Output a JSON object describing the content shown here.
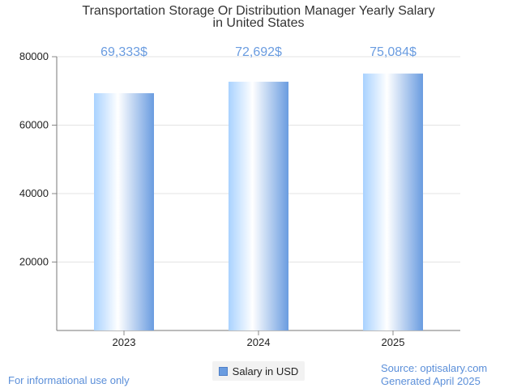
{
  "chart_data": {
    "type": "bar",
    "title_lines": [
      "Transportation Storage Or Distribution Manager Yearly Salary",
      "in United States"
    ],
    "categories": [
      "2023",
      "2024",
      "2025"
    ],
    "series": [
      {
        "name": "Salary in USD",
        "values": [
          69333,
          72692,
          75084
        ]
      }
    ],
    "value_labels": [
      "69,333$",
      "72,692$",
      "75,084$"
    ],
    "y_ticks": [
      20000,
      40000,
      60000,
      80000
    ],
    "ylim": [
      0,
      80000
    ],
    "grid": true,
    "legend_position": "bottom",
    "bar_color": "#6a9ce0"
  },
  "footer": {
    "disclaimer": "For informational use only",
    "source": "Source: optisalary.com",
    "generated": "Generated April 2025"
  }
}
